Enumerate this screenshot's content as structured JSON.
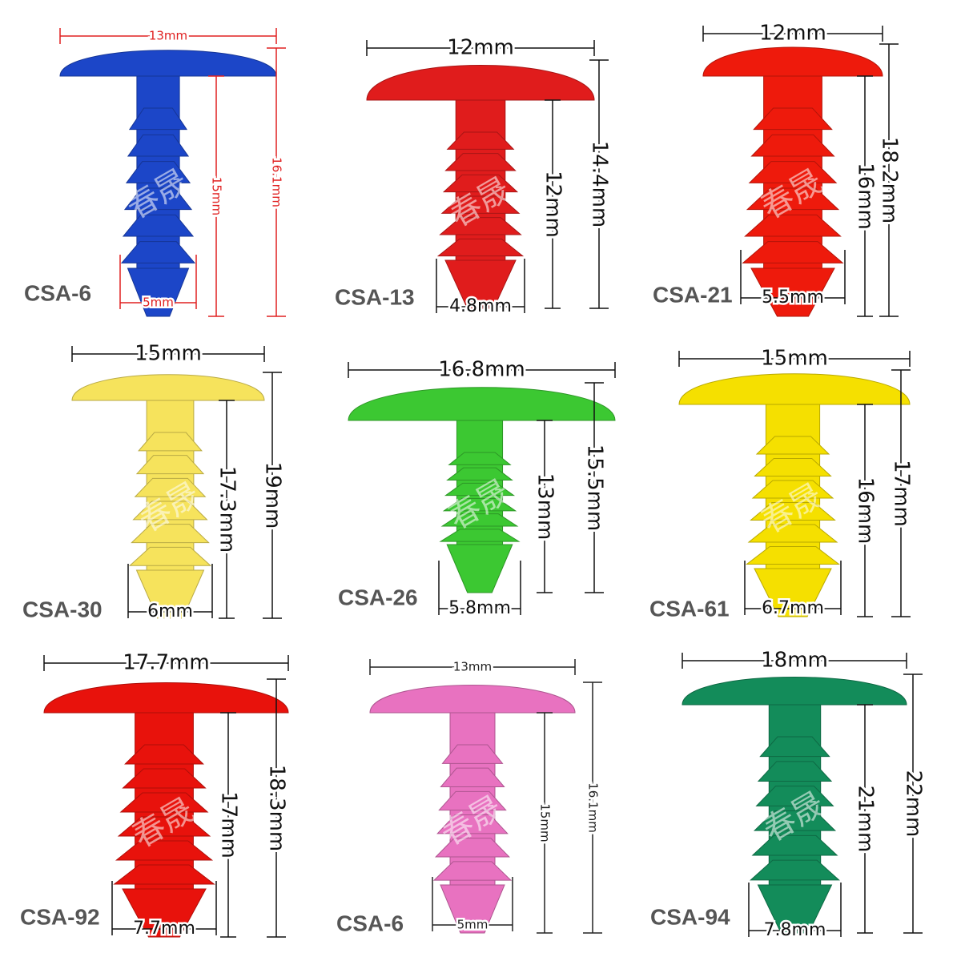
{
  "watermark": "春晟",
  "items": [
    {
      "label": "CSA-6",
      "head_width": "13mm",
      "total_height": "16.1mm",
      "shank_height": "15mm",
      "shank_width": "5mm"
    },
    {
      "label": "CSA-13",
      "head_width": "12mm",
      "total_height": "14.4mm",
      "shank_height": "12mm",
      "shank_width": "4.8mm"
    },
    {
      "label": "CSA-21",
      "head_width": "12mm",
      "total_height": "18.2mm",
      "shank_height": "16mm",
      "shank_width": "5.5mm"
    },
    {
      "label": "CSA-30",
      "head_width": "15mm",
      "total_height": "19mm",
      "shank_height": "17.3mm",
      "shank_width": "6mm"
    },
    {
      "label": "CSA-26",
      "head_width": "16.8mm",
      "total_height": "15.5mm",
      "shank_height": "13mm",
      "shank_width": "5.8mm"
    },
    {
      "label": "CSA-61",
      "head_width": "15mm",
      "total_height": "17mm",
      "shank_height": "16mm",
      "shank_width": "6.7mm"
    },
    {
      "label": "CSA-92",
      "head_width": "17.7mm",
      "total_height": "18.3mm",
      "shank_height": "17mm",
      "shank_width": "7.7mm"
    },
    {
      "label": "CSA-6",
      "head_width": "13mm",
      "total_height": "16.1mm",
      "shank_height": "15mm",
      "shank_width": "5mm"
    },
    {
      "label": "CSA-94",
      "head_width": "18mm",
      "total_height": "22mm",
      "shank_height": "21mm",
      "shank_width": "7.8mm"
    }
  ]
}
